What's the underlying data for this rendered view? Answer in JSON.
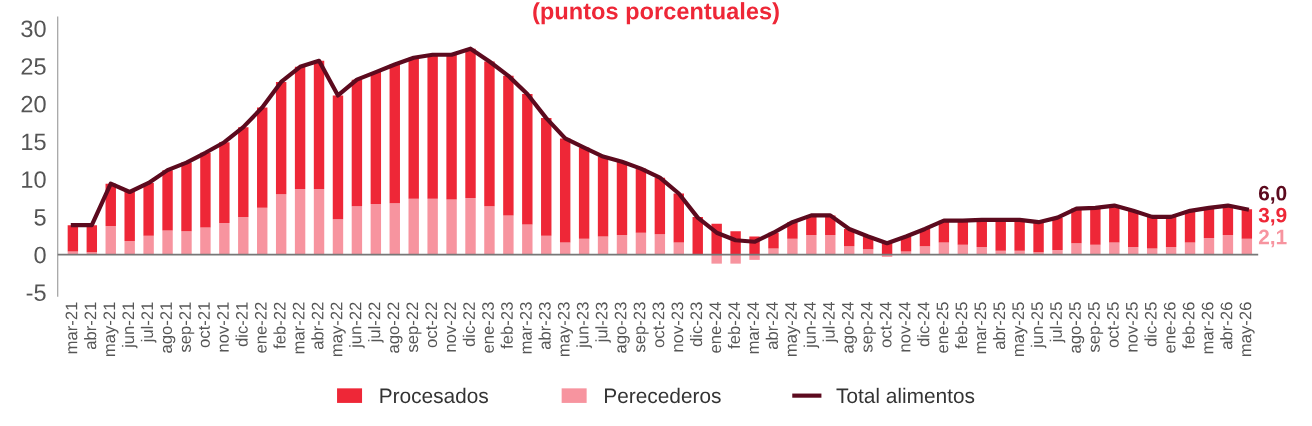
{
  "chart_data": {
    "type": "bar",
    "stacked": true,
    "title": "(puntos porcentuales)",
    "categories": [
      "mar-21",
      "abr-21",
      "may-21",
      "jun-21",
      "jul-21",
      "ago-21",
      "sep-21",
      "oct-21",
      "nov-21",
      "dic-21",
      "ene-22",
      "feb-22",
      "mar-22",
      "abr-22",
      "may-22",
      "jun-22",
      "jul-22",
      "ago-22",
      "sep-22",
      "oct-22",
      "nov-22",
      "dic-22",
      "ene-23",
      "feb-23",
      "mar-23",
      "abr-23",
      "may-23",
      "jun-23",
      "jul-23",
      "ago-23",
      "sep-23",
      "oct-23",
      "nov-23",
      "dic-23",
      "ene-24",
      "feb-24",
      "mar-24",
      "abr-24",
      "may-24",
      "jun-24",
      "jul-24",
      "ago-24",
      "sep-24",
      "oct-24",
      "nov-24",
      "dic-24",
      "ene-25",
      "feb-25",
      "mar-25",
      "abr-25",
      "may-25",
      "jun-25",
      "jul-25",
      "ago-25",
      "sep-25",
      "oct-25",
      "nov-25",
      "dic-25",
      "ene-26",
      "feb-26",
      "mar-26",
      "abr-26",
      "may-26"
    ],
    "series": [
      {
        "name": "Perecederos",
        "color": "#f7949f",
        "values": [
          0.4,
          0.3,
          3.8,
          1.8,
          2.5,
          3.2,
          3.1,
          3.6,
          4.2,
          5.0,
          6.2,
          8.0,
          8.7,
          8.7,
          4.7,
          6.4,
          6.7,
          6.8,
          7.4,
          7.4,
          7.3,
          7.5,
          6.4,
          5.2,
          4.0,
          2.5,
          1.6,
          2.1,
          2.4,
          2.6,
          2.9,
          2.7,
          1.6,
          null,
          -1.2,
          -1.2,
          -0.7,
          0.8,
          2.1,
          2.6,
          2.6,
          1.1,
          0.7,
          -0.3,
          0.4,
          1.1,
          1.6,
          1.3,
          1.0,
          0.5,
          0.5,
          0.3,
          0.6,
          1.5,
          1.3,
          1.6,
          1.0,
          0.8,
          1.0,
          1.6,
          2.2,
          2.6,
          2.1
        ]
      },
      {
        "name": "Procesados",
        "color": "#ee2737",
        "values": [
          3.5,
          3.6,
          5.6,
          6.5,
          7.0,
          8.0,
          9.1,
          9.9,
          10.7,
          11.9,
          13.3,
          14.9,
          16.2,
          17.0,
          16.4,
          16.8,
          17.5,
          18.4,
          18.7,
          19.1,
          19.2,
          19.8,
          19.2,
          18.5,
          17.3,
          15.6,
          13.8,
          12.1,
          10.6,
          9.7,
          8.5,
          7.5,
          6.5,
          5.0,
          4.1,
          3.1,
          2.4,
          2.1,
          2.2,
          2.6,
          2.6,
          2.3,
          1.7,
          1.8,
          2.0,
          2.3,
          2.9,
          3.2,
          3.6,
          4.1,
          4.1,
          4.0,
          4.3,
          4.6,
          4.9,
          4.9,
          4.8,
          4.2,
          4.0,
          4.2,
          4.0,
          3.9,
          3.9
        ]
      },
      {
        "name": "Total alimentos",
        "type": "line",
        "color": "#5c0a1e",
        "values": [
          3.9,
          3.9,
          9.4,
          8.3,
          9.5,
          11.2,
          12.2,
          13.5,
          14.9,
          16.9,
          19.5,
          22.9,
          24.9,
          25.7,
          21.1,
          23.2,
          24.2,
          25.2,
          26.1,
          26.5,
          26.5,
          27.3,
          25.6,
          23.7,
          21.3,
          18.1,
          15.4,
          14.2,
          13.0,
          12.3,
          11.4,
          10.2,
          8.1,
          4.9,
          2.9,
          1.9,
          1.7,
          2.9,
          4.3,
          5.2,
          5.2,
          3.4,
          2.4,
          1.5,
          2.4,
          3.4,
          4.5,
          4.5,
          4.6,
          4.6,
          4.6,
          4.3,
          4.9,
          6.1,
          6.2,
          6.5,
          5.8,
          5.0,
          5.0,
          5.8,
          6.2,
          6.5,
          6.0
        ]
      }
    ],
    "ylim": [
      -5.5,
      31.5
    ],
    "yticks": [
      -5,
      0,
      5,
      10,
      15,
      20,
      25,
      30
    ],
    "ref_lines": [
      {
        "axis": "y",
        "value": 0,
        "color": "#777777"
      }
    ],
    "annotations": [
      {
        "text": "6,0",
        "x": "may-26",
        "y": 6.0
      },
      {
        "text": "3,9",
        "x": "may-26",
        "y": 3.9
      },
      {
        "text": "2,1",
        "x": "may-26",
        "y": 2.1
      }
    ],
    "legend": "bottom",
    "grid": false
  }
}
